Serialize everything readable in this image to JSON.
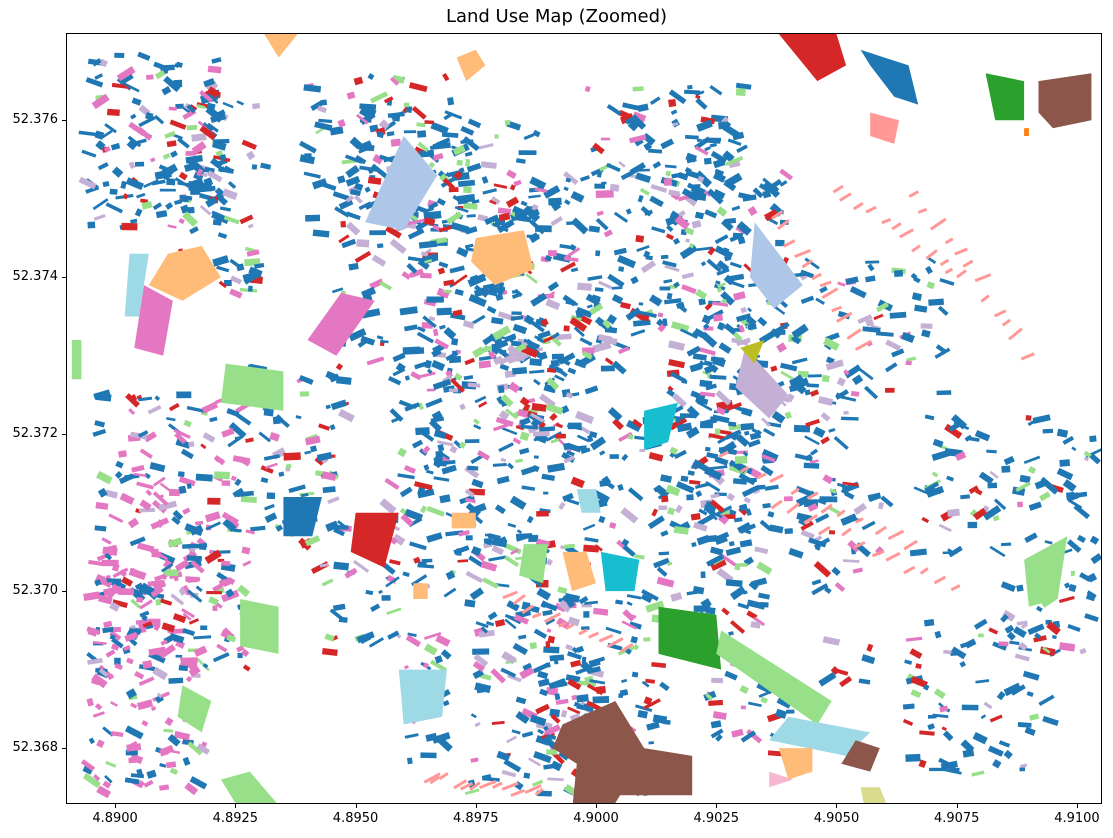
{
  "chart_data": {
    "type": "map",
    "title": "Land Use Map (Zoomed)",
    "xlim": [
      4.889,
      4.9105
    ],
    "ylim": [
      52.3673,
      52.3771
    ],
    "x_ticks": [
      "4.8900",
      "4.8925",
      "4.8950",
      "4.8975",
      "4.9000",
      "4.9025",
      "4.9050",
      "4.9075",
      "4.9100"
    ],
    "x_tick_values": [
      4.89,
      4.8925,
      4.895,
      4.8975,
      4.9,
      4.9025,
      4.905,
      4.9075,
      4.91
    ],
    "y_ticks": [
      "52.368",
      "52.370",
      "52.372",
      "52.374",
      "52.376"
    ],
    "y_tick_values": [
      52.368,
      52.37,
      52.372,
      52.374,
      52.376
    ],
    "grid": false,
    "legend": "none",
    "category_colors": {
      "residential": "#1f77b4",
      "commercial": "#e377c2",
      "retail": "#d62728",
      "park": "#98df8a",
      "sports": "#2ca02c",
      "public": "#ffbb78",
      "religious": "#8c564b",
      "parking": "#ff9896",
      "education": "#aec7e8",
      "water": "#9edae5",
      "museum": "#17becf",
      "office": "#c5b0d5",
      "hotel": "#f7b6d2",
      "industrial": "#dbdb8d",
      "other": "#bcbd22",
      "construction": "#ff7f0e"
    },
    "features": [
      {
        "c": "religious",
        "pts": [
          [
            4.8993,
            52.3683
          ],
          [
            4.9004,
            52.3686
          ],
          [
            4.901,
            52.368
          ],
          [
            4.902,
            52.3679
          ],
          [
            4.902,
            52.3674
          ],
          [
            4.9005,
            52.3674
          ],
          [
            4.9003,
            52.3672
          ],
          [
            4.8995,
            52.3672
          ],
          [
            4.8996,
            52.3678
          ],
          [
            4.8991,
            52.368
          ]
        ]
      },
      {
        "c": "sports",
        "pts": [
          [
            4.9013,
            52.3698
          ],
          [
            4.9025,
            52.3697
          ],
          [
            4.9026,
            52.369
          ],
          [
            4.9013,
            52.3692
          ]
        ]
      },
      {
        "c": "park",
        "pts": [
          [
            4.9026,
            52.3695
          ],
          [
            4.9049,
            52.3686
          ],
          [
            4.9046,
            52.3683
          ],
          [
            4.9025,
            52.3692
          ]
        ]
      },
      {
        "c": "water",
        "pts": [
          [
            4.904,
            52.3684
          ],
          [
            4.9057,
            52.3682
          ],
          [
            4.9052,
            52.3679
          ],
          [
            4.9036,
            52.3681
          ]
        ]
      },
      {
        "c": "hotel",
        "pts": [
          [
            4.9036,
            52.3677
          ],
          [
            4.9041,
            52.3676
          ],
          [
            4.9036,
            52.3675
          ]
        ]
      },
      {
        "c": "religious",
        "pts": [
          [
            4.9051,
            52.3678
          ],
          [
            4.9057,
            52.3677
          ],
          [
            4.9059,
            52.368
          ],
          [
            4.9054,
            52.3681
          ]
        ]
      },
      {
        "c": "industrial",
        "pts": [
          [
            4.9055,
            52.3675
          ],
          [
            4.9059,
            52.3675
          ],
          [
            4.9061,
            52.3672
          ],
          [
            4.9056,
            52.3672
          ]
        ]
      },
      {
        "c": "retail",
        "pts": [
          [
            4.9038,
            52.3771
          ],
          [
            4.905,
            52.3771
          ],
          [
            4.9052,
            52.3767
          ],
          [
            4.9046,
            52.3765
          ]
        ]
      },
      {
        "c": "residential",
        "pts": [
          [
            4.9055,
            52.3769
          ],
          [
            4.9065,
            52.3767
          ],
          [
            4.9067,
            52.3762
          ],
          [
            4.9062,
            52.3763
          ],
          [
            4.9057,
            52.3767
          ]
        ]
      },
      {
        "c": "parking",
        "pts": [
          [
            4.9057,
            52.3761
          ],
          [
            4.9063,
            52.376
          ],
          [
            4.9062,
            52.3757
          ],
          [
            4.9057,
            52.3758
          ]
        ]
      },
      {
        "c": "sports",
        "pts": [
          [
            4.9081,
            52.3766
          ],
          [
            4.9089,
            52.3765
          ],
          [
            4.9089,
            52.376
          ],
          [
            4.9083,
            52.376
          ]
        ]
      },
      {
        "c": "religious",
        "pts": [
          [
            4.9092,
            52.3765
          ],
          [
            4.9103,
            52.3766
          ],
          [
            4.9103,
            52.376
          ],
          [
            4.9095,
            52.3759
          ],
          [
            4.9092,
            52.3761
          ]
        ]
      },
      {
        "c": "education",
        "pts": [
          [
            4.896,
            52.3758
          ],
          [
            4.8967,
            52.3753
          ],
          [
            4.896,
            52.3746
          ],
          [
            4.8952,
            52.3747
          ]
        ]
      },
      {
        "c": "education",
        "pts": [
          [
            4.9033,
            52.3747
          ],
          [
            4.9043,
            52.3739
          ],
          [
            4.9037,
            52.3736
          ],
          [
            4.9032,
            52.374
          ]
        ]
      },
      {
        "c": "public",
        "pts": [
          [
            4.8975,
            52.3745
          ],
          [
            4.8985,
            52.3746
          ],
          [
            4.8987,
            52.3741
          ],
          [
            4.8979,
            52.3739
          ],
          [
            4.8974,
            52.3742
          ]
        ]
      },
      {
        "c": "public",
        "pts": [
          [
            4.8911,
            52.3743
          ],
          [
            4.8918,
            52.3744
          ],
          [
            4.8922,
            52.374
          ],
          [
            4.8914,
            52.3737
          ],
          [
            4.8907,
            52.3739
          ]
        ]
      },
      {
        "c": "commercial",
        "pts": [
          [
            4.8906,
            52.3739
          ],
          [
            4.8912,
            52.3737
          ],
          [
            4.891,
            52.373
          ],
          [
            4.8904,
            52.3731
          ]
        ]
      },
      {
        "c": "commercial",
        "pts": [
          [
            4.8947,
            52.3738
          ],
          [
            4.8954,
            52.3737
          ],
          [
            4.8946,
            52.373
          ],
          [
            4.894,
            52.3732
          ]
        ]
      },
      {
        "c": "water",
        "pts": [
          [
            4.8903,
            52.3743
          ],
          [
            4.8907,
            52.3743
          ],
          [
            4.8905,
            52.3735
          ],
          [
            4.8902,
            52.3735
          ]
        ]
      },
      {
        "c": "museum",
        "pts": [
          [
            4.901,
            52.3723
          ],
          [
            4.9017,
            52.3724
          ],
          [
            4.9015,
            52.3719
          ],
          [
            4.901,
            52.3718
          ]
        ]
      },
      {
        "c": "museum",
        "pts": [
          [
            4.9001,
            52.3705
          ],
          [
            4.9009,
            52.3704
          ],
          [
            4.9008,
            52.37
          ],
          [
            4.9002,
            52.37
          ]
        ]
      },
      {
        "c": "retail",
        "pts": [
          [
            4.895,
            52.371
          ],
          [
            4.8959,
            52.371
          ],
          [
            4.8956,
            52.3703
          ],
          [
            4.8949,
            52.3705
          ]
        ]
      },
      {
        "c": "residential",
        "pts": [
          [
            4.8935,
            52.3712
          ],
          [
            4.8943,
            52.3712
          ],
          [
            4.8941,
            52.3707
          ],
          [
            4.8935,
            52.3707
          ]
        ]
      },
      {
        "c": "park",
        "pts": [
          [
            4.8923,
            52.3729
          ],
          [
            4.8935,
            52.3728
          ],
          [
            4.8935,
            52.3723
          ],
          [
            4.8922,
            52.3724
          ]
        ]
      },
      {
        "c": "park",
        "pts": [
          [
            4.8926,
            52.3699
          ],
          [
            4.8934,
            52.3698
          ],
          [
            4.8934,
            52.3692
          ],
          [
            4.8926,
            52.3693
          ]
        ]
      },
      {
        "c": "park",
        "pts": [
          [
            4.8914,
            52.3688
          ],
          [
            4.892,
            52.3686
          ],
          [
            4.8918,
            52.3682
          ],
          [
            4.8913,
            52.3684
          ]
        ]
      },
      {
        "c": "park",
        "pts": [
          [
            4.8928,
            52.3677
          ],
          [
            4.8935,
            52.3672
          ],
          [
            4.8926,
            52.3672
          ],
          [
            4.8922,
            52.3676
          ]
        ]
      },
      {
        "c": "water",
        "pts": [
          [
            4.8959,
            52.369
          ],
          [
            4.8969,
            52.369
          ],
          [
            4.8968,
            52.3684
          ],
          [
            4.896,
            52.3683
          ]
        ]
      },
      {
        "c": "water",
        "pts": [
          [
            4.8996,
            52.3713
          ],
          [
            4.9,
            52.3713
          ],
          [
            4.9001,
            52.371
          ],
          [
            4.8997,
            52.371
          ]
        ]
      },
      {
        "c": "public",
        "pts": [
          [
            4.8993,
            52.3705
          ],
          [
            4.8998,
            52.3705
          ],
          [
            4.9,
            52.3701
          ],
          [
            4.8995,
            52.37
          ]
        ]
      },
      {
        "c": "public",
        "pts": [
          [
            4.9038,
            52.368
          ],
          [
            4.9045,
            52.368
          ],
          [
            4.9045,
            52.3677
          ],
          [
            4.904,
            52.3676
          ]
        ]
      },
      {
        "c": "park",
        "pts": [
          [
            4.8985,
            52.3706
          ],
          [
            4.899,
            52.3706
          ],
          [
            4.8989,
            52.3701
          ],
          [
            4.8984,
            52.3702
          ]
        ]
      },
      {
        "c": "park",
        "pts": [
          [
            4.9089,
            52.3704
          ],
          [
            4.9098,
            52.3707
          ],
          [
            4.9096,
            52.3699
          ],
          [
            4.909,
            52.3698
          ]
        ]
      },
      {
        "c": "public",
        "pts": [
          [
            4.897,
            52.371
          ],
          [
            4.8975,
            52.371
          ],
          [
            4.8975,
            52.3708
          ],
          [
            4.897,
            52.3708
          ]
        ]
      },
      {
        "c": "office",
        "pts": [
          [
            4.9031,
            52.3731
          ],
          [
            4.904,
            52.3725
          ],
          [
            4.9036,
            52.3722
          ],
          [
            4.9029,
            52.3726
          ]
        ]
      },
      {
        "c": "other",
        "pts": [
          [
            4.903,
            52.3731
          ],
          [
            4.9035,
            52.3732
          ],
          [
            4.9033,
            52.3729
          ]
        ]
      },
      {
        "c": "public",
        "pts": [
          [
            4.8971,
            52.3768
          ],
          [
            4.8975,
            52.3769
          ],
          [
            4.8977,
            52.3767
          ],
          [
            4.8973,
            52.3765
          ]
        ]
      },
      {
        "c": "public",
        "pts": [
          [
            4.8931,
            52.3771
          ],
          [
            4.8938,
            52.3771
          ],
          [
            4.8934,
            52.3768
          ]
        ]
      },
      {
        "c": "construction",
        "pts": [
          [
            4.9089,
            52.3759
          ],
          [
            4.909,
            52.3759
          ],
          [
            4.909,
            52.3758
          ],
          [
            4.9089,
            52.3758
          ]
        ]
      },
      {
        "c": "park",
        "pts": [
          [
            4.8891,
            52.3732
          ],
          [
            4.8893,
            52.3732
          ],
          [
            4.8893,
            52.3727
          ],
          [
            4.8891,
            52.3727
          ]
        ]
      },
      {
        "c": "public",
        "pts": [
          [
            4.8962,
            52.3701
          ],
          [
            4.8965,
            52.3701
          ],
          [
            4.8965,
            52.3699
          ],
          [
            4.8962,
            52.3699
          ]
        ]
      }
    ]
  }
}
